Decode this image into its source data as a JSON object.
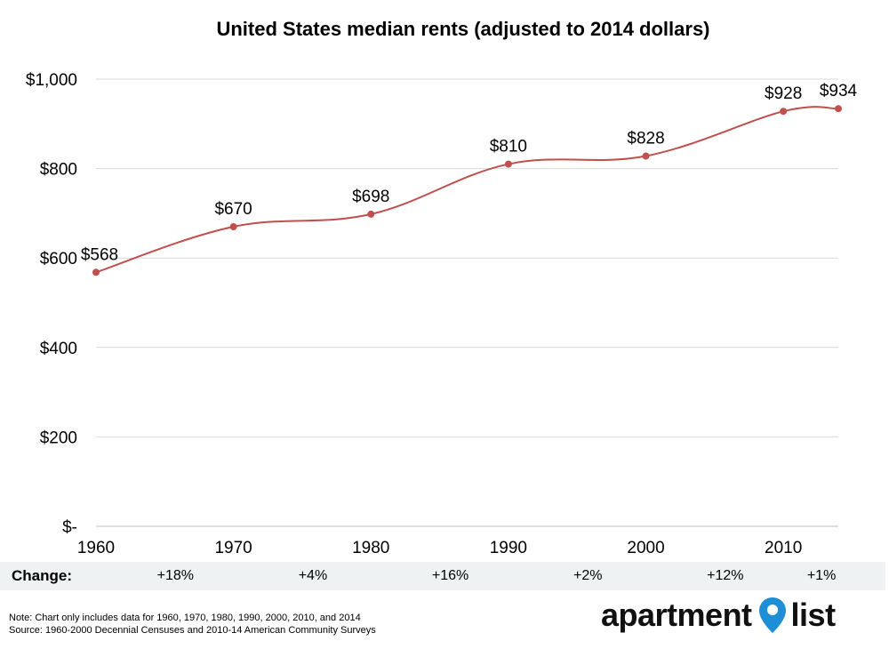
{
  "chart_data": {
    "type": "line",
    "title": "United States median rents (adjusted to 2014 dollars)",
    "x": [
      1960,
      1970,
      1980,
      1990,
      2000,
      2010,
      2014
    ],
    "values": [
      568,
      670,
      698,
      810,
      828,
      928,
      934
    ],
    "data_labels": [
      "$568",
      "$670",
      "$698",
      "$810",
      "$828",
      "$928",
      "$934"
    ],
    "x_tick_labels": [
      "1960",
      "1970",
      "1980",
      "1990",
      "2000",
      "2010"
    ],
    "x_ticks": [
      1960,
      1970,
      1980,
      1990,
      2000,
      2010
    ],
    "y_ticks": [
      0,
      200,
      400,
      600,
      800,
      1000
    ],
    "y_tick_labels": [
      "$-",
      "$200",
      "$400",
      "$600",
      "$800",
      "$1,000"
    ],
    "ylim": [
      0,
      1000
    ],
    "xlim": [
      1960,
      2014
    ],
    "grid": true,
    "line_color": "#c0504d"
  },
  "change_row": {
    "label": "Change:",
    "values": [
      "+18%",
      "+4%",
      "+16%",
      "+2%",
      "+12%",
      "+1%"
    ],
    "positions_x": [
      1965,
      1975,
      1985,
      1995,
      2005,
      2012
    ]
  },
  "notes": {
    "note": "Note: Chart only includes data for 1960, 1970, 1980, 1990, 2000, 2010, and 2014",
    "source": "Source: 1960-2000 Decennial Censuses and 2010-14 American Community Surveys"
  },
  "logo": {
    "text_left": "apartment",
    "text_right": "list",
    "pin_color": "#1e8fd6"
  }
}
